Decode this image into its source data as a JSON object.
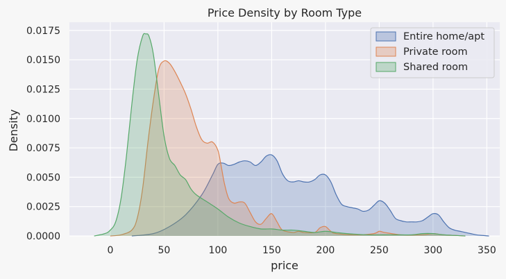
{
  "chart_data": {
    "type": "area",
    "title": "Price Density by Room Type",
    "xlabel": "price",
    "ylabel": "Density",
    "xlim": [
      -38,
      362
    ],
    "ylim": [
      0,
      0.0182
    ],
    "xticks": [
      0,
      50,
      100,
      150,
      200,
      250,
      300,
      350
    ],
    "yticks": [
      0.0,
      0.0025,
      0.005,
      0.0075,
      0.01,
      0.0125,
      0.015,
      0.0175
    ],
    "ytick_labels": [
      "0.0000",
      "0.0025",
      "0.0050",
      "0.0075",
      "0.0100",
      "0.0125",
      "0.0150",
      "0.0175"
    ],
    "grid": true,
    "legend_position": "top-right",
    "series": [
      {
        "name": "Entire home/apt",
        "color": "#4c72b0",
        "x": [
          20,
          40,
          55,
          70,
          85,
          95,
          100,
          105,
          110,
          115,
          120,
          125,
          130,
          135,
          140,
          145,
          150,
          155,
          160,
          165,
          170,
          175,
          180,
          185,
          190,
          195,
          200,
          205,
          210,
          215,
          220,
          225,
          230,
          235,
          240,
          245,
          250,
          255,
          260,
          265,
          270,
          275,
          280,
          285,
          290,
          295,
          300,
          305,
          310,
          315,
          320,
          325,
          330,
          335,
          340,
          345,
          352
        ],
        "y": [
          0.0,
          0.0002,
          0.0008,
          0.0018,
          0.0035,
          0.0052,
          0.0061,
          0.0062,
          0.006,
          0.0061,
          0.0063,
          0.0064,
          0.0063,
          0.006,
          0.0063,
          0.0068,
          0.0069,
          0.0064,
          0.0053,
          0.0047,
          0.0046,
          0.0047,
          0.0046,
          0.0046,
          0.0048,
          0.0052,
          0.0052,
          0.0046,
          0.0035,
          0.0027,
          0.0025,
          0.0024,
          0.0023,
          0.0021,
          0.0022,
          0.0026,
          0.003,
          0.0028,
          0.0022,
          0.0015,
          0.0013,
          0.0012,
          0.0012,
          0.0012,
          0.0013,
          0.0016,
          0.0019,
          0.0018,
          0.0012,
          0.0007,
          0.0005,
          0.0004,
          0.0003,
          0.0002,
          0.0001,
          5e-05,
          0.0
        ]
      },
      {
        "name": "Private room",
        "color": "#dd8452",
        "x": [
          0,
          10,
          20,
          25,
          30,
          35,
          40,
          45,
          50,
          55,
          60,
          65,
          70,
          75,
          80,
          85,
          90,
          95,
          100,
          103,
          106,
          110,
          115,
          120,
          125,
          130,
          135,
          140,
          145,
          150,
          155,
          160,
          170,
          175,
          180,
          190,
          195,
          200,
          205,
          210,
          230,
          245,
          250,
          255,
          270,
          290,
          300,
          310,
          330
        ],
        "y": [
          0.0,
          0.0001,
          0.0005,
          0.0015,
          0.004,
          0.008,
          0.0115,
          0.0142,
          0.0149,
          0.0147,
          0.014,
          0.0131,
          0.0121,
          0.0108,
          0.0093,
          0.0082,
          0.0079,
          0.008,
          0.0073,
          0.006,
          0.0045,
          0.0032,
          0.0028,
          0.0029,
          0.0028,
          0.002,
          0.0012,
          0.001,
          0.0015,
          0.0019,
          0.0012,
          0.0005,
          0.0003,
          0.0004,
          0.0003,
          0.0003,
          0.0007,
          0.0008,
          0.0004,
          0.0002,
          0.0001,
          0.0002,
          0.0004,
          0.0003,
          0.0001,
          0.0001,
          0.0002,
          0.0001,
          0.0
        ]
      },
      {
        "name": "Shared room",
        "color": "#55a868",
        "x": [
          -15,
          -5,
          0,
          5,
          10,
          15,
          20,
          25,
          30,
          33,
          36,
          40,
          45,
          50,
          55,
          60,
          65,
          70,
          75,
          80,
          90,
          100,
          110,
          120,
          130,
          140,
          150,
          160,
          170,
          180,
          190,
          200,
          210,
          220,
          240,
          260,
          280,
          290,
          300,
          310,
          330
        ],
        "y": [
          0.0,
          0.0002,
          0.0005,
          0.0012,
          0.0032,
          0.0068,
          0.0112,
          0.015,
          0.017,
          0.0172,
          0.017,
          0.0155,
          0.012,
          0.0085,
          0.0066,
          0.006,
          0.0052,
          0.0048,
          0.004,
          0.0035,
          0.0029,
          0.0023,
          0.0016,
          0.0011,
          0.0008,
          0.0006,
          0.0006,
          0.0005,
          0.0005,
          0.0004,
          0.0003,
          0.0004,
          0.0003,
          0.0002,
          0.0001,
          0.0001,
          0.0001,
          0.0002,
          0.0002,
          0.0001,
          0.0
        ]
      }
    ]
  }
}
